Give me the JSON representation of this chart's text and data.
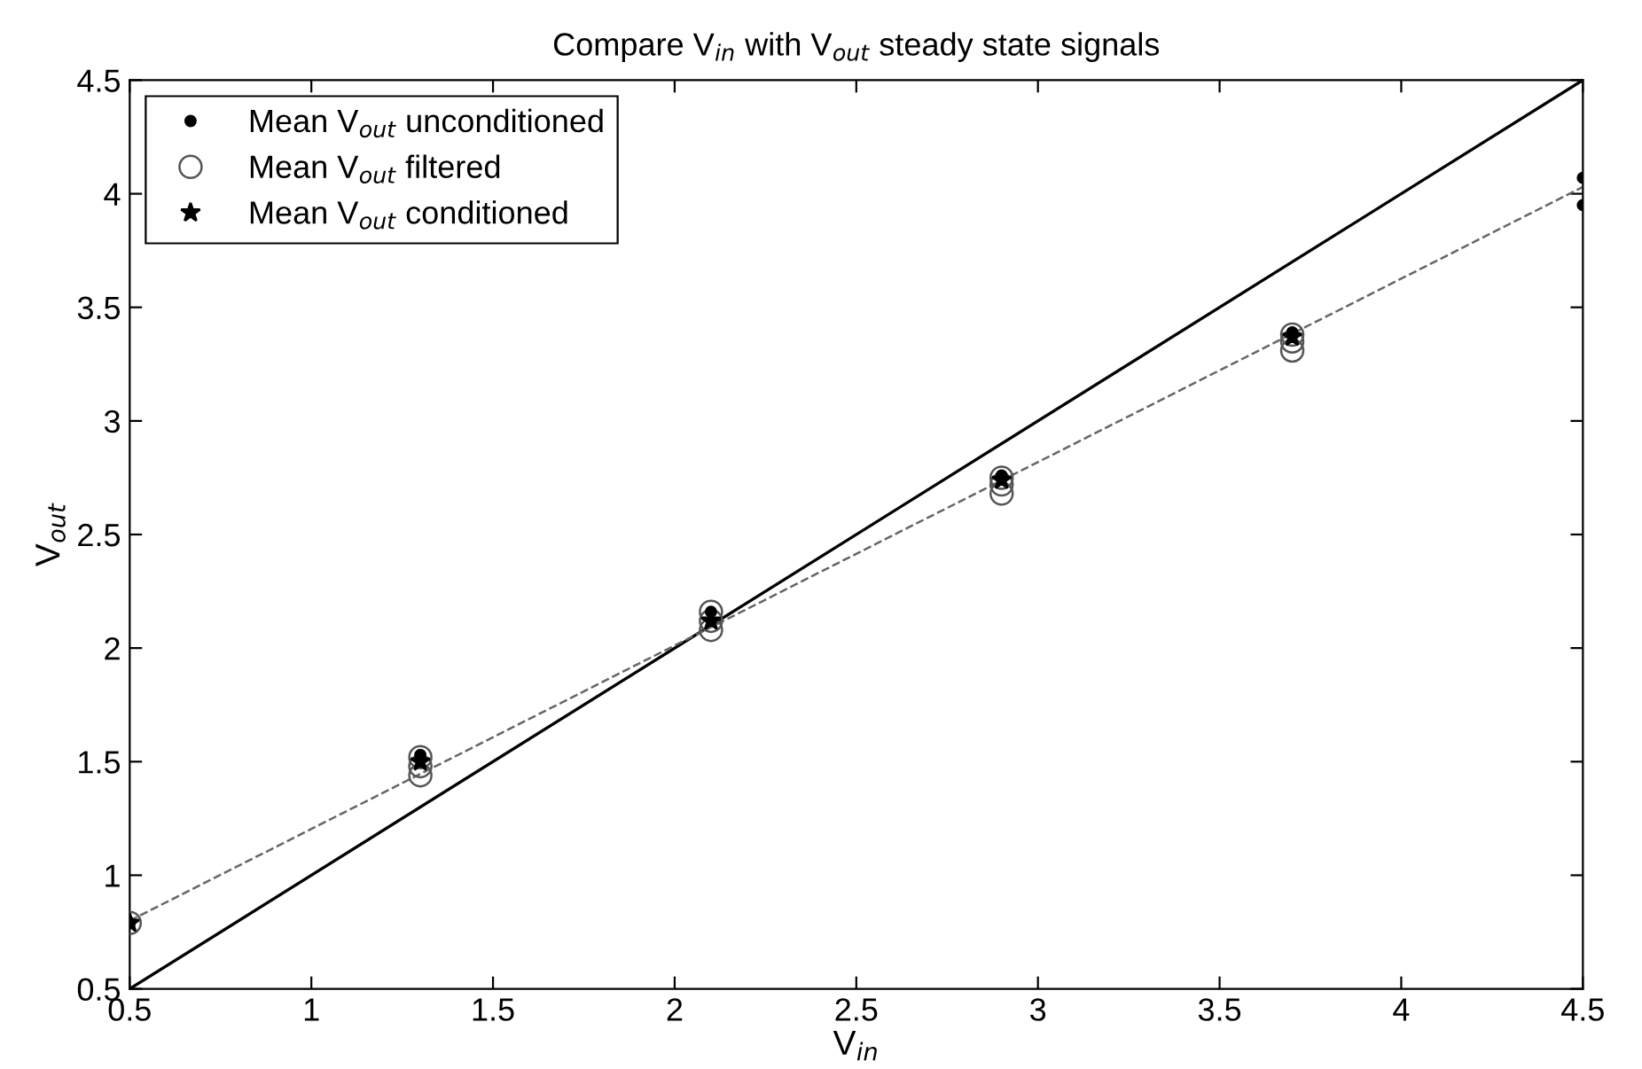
{
  "chart_data": {
    "type": "scatter",
    "title": "Compare V$_{in}$ with V$_{out}$ steady state signals",
    "xlabel": "V$_{in}$",
    "ylabel": "V$_{out}$",
    "xlim": [
      0.5,
      4.5
    ],
    "ylim": [
      0.5,
      4.5
    ],
    "xticks": [
      0.5,
      1,
      1.5,
      2,
      2.5,
      3,
      3.5,
      4,
      4.5
    ],
    "yticks": [
      0.5,
      1,
      1.5,
      2,
      2.5,
      3,
      3.5,
      4,
      4.5
    ],
    "grid": false,
    "legend": "top left",
    "series": [
      {
        "name": "Mean V$_{out}$ unconditioned",
        "color": "#000000",
        "x": [
          0.5,
          1.3,
          2.1,
          2.9,
          3.7,
          4.5,
          4.5
        ],
        "values": [
          0.79,
          1.53,
          2.16,
          2.76,
          3.39,
          4.07,
          3.95
        ]
      },
      {
        "name": "Mean V$_{out}$ filtered",
        "marker": "circle",
        "color": "#555555",
        "x": [
          0.5,
          1.3,
          1.3,
          1.3,
          2.1,
          2.1,
          2.1,
          2.9,
          2.9,
          2.9,
          3.7,
          3.7,
          3.7
        ],
        "values": [
          0.79,
          1.44,
          1.48,
          1.52,
          2.08,
          2.12,
          2.16,
          2.68,
          2.72,
          2.75,
          3.31,
          3.35,
          3.38
        ]
      },
      {
        "name": "Mean V$_{out}$ conditioned",
        "marker": "star",
        "color": "#000000",
        "x": [
          0.5,
          1.3,
          2.1,
          2.9,
          3.7
        ],
        "values": [
          0.79,
          1.5,
          2.12,
          2.74,
          3.37
        ]
      },
      {
        "type": "line",
        "line_style": "solid",
        "color": "#000000",
        "x": [
          0.5,
          4.5
        ],
        "values": [
          0.5,
          4.5
        ]
      },
      {
        "type": "line",
        "line_style": "dashed",
        "color": "#666666",
        "x": [
          0.5,
          4.5
        ],
        "values": [
          0.8,
          4.03
        ]
      }
    ]
  }
}
